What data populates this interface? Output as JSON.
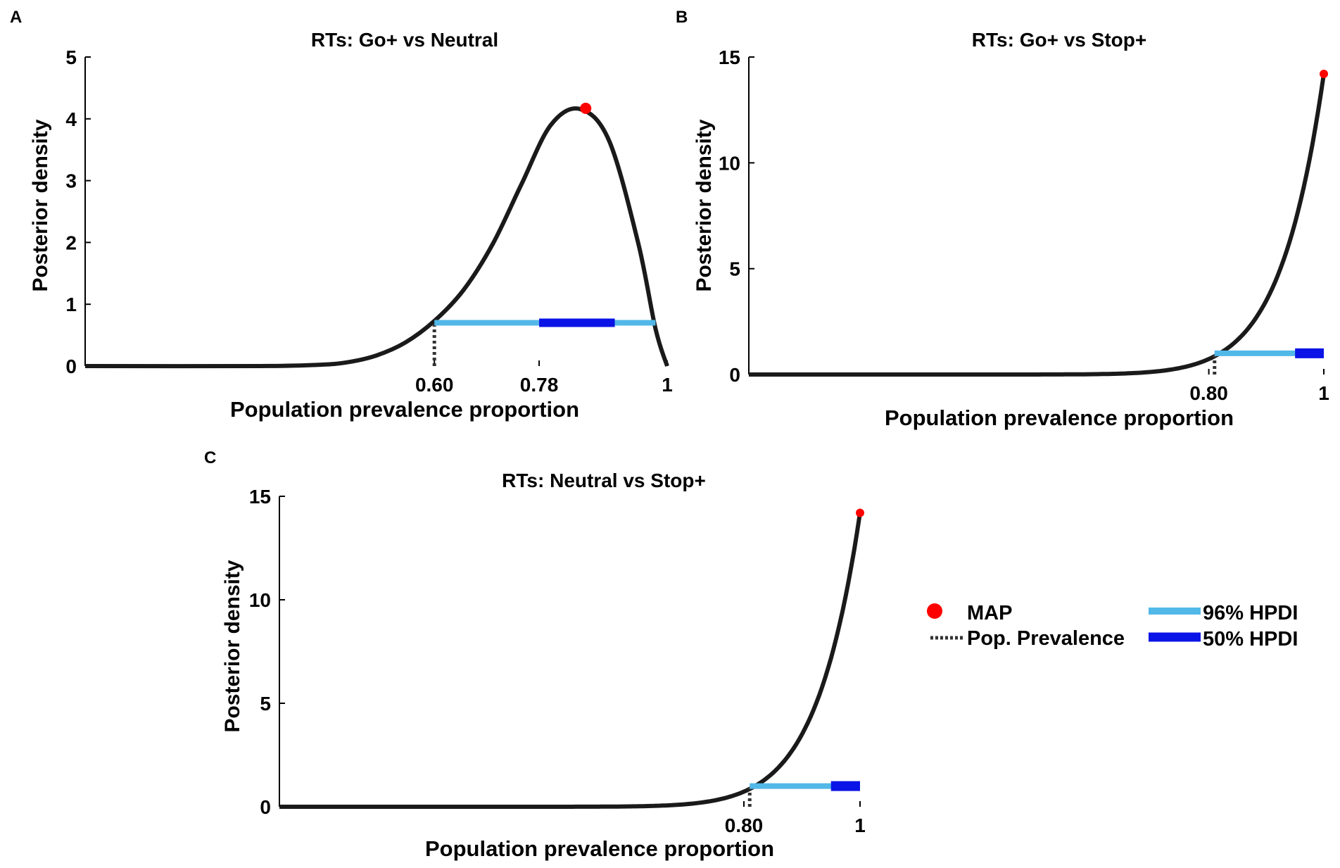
{
  "chart_data": [
    {
      "panel_label": "A",
      "type": "line",
      "title": "RTs: Go+ vs Neutral",
      "xlabel": "Population prevalence proportion",
      "ylabel": "Posterior density",
      "xlim": [
        0,
        1
      ],
      "ylim": [
        0,
        5
      ],
      "xticks": [
        0.6,
        0.78,
        1
      ],
      "xtick_labels": [
        "0.60",
        "0.78",
        "1"
      ],
      "yticks": [
        0,
        1,
        2,
        3,
        4,
        5
      ],
      "ytick_labels": [
        "0",
        "1",
        "2",
        "3",
        "4",
        "5"
      ],
      "curve": {
        "x": [
          0,
          0.3,
          0.4,
          0.45,
          0.5,
          0.55,
          0.6,
          0.65,
          0.7,
          0.75,
          0.8,
          0.85,
          0.9,
          0.95,
          0.98,
          1.0
        ],
        "y": [
          0,
          0.0,
          0.02,
          0.06,
          0.17,
          0.38,
          0.73,
          1.23,
          1.97,
          2.95,
          3.9,
          4.16,
          3.65,
          2.0,
          0.6,
          0.0
        ]
      },
      "map": {
        "x": 0.86,
        "y": 4.17
      },
      "hpdi_96": [
        0.6,
        0.98
      ],
      "hpdi_50": [
        0.78,
        0.91
      ],
      "hpdi_y": 0.7,
      "pop_prevalence": 0.6
    },
    {
      "panel_label": "B",
      "type": "line",
      "title": "RTs: Go+ vs Stop+",
      "xlabel": "Population prevalence proportion",
      "ylabel": "Posterior density",
      "xlim": [
        0,
        1
      ],
      "ylim": [
        0,
        15
      ],
      "xticks": [
        0.8,
        1
      ],
      "xtick_labels": [
        "0.80",
        "1"
      ],
      "yticks": [
        0,
        5,
        10,
        15
      ],
      "ytick_labels": [
        "0",
        "5",
        "10",
        "15"
      ],
      "curve_k": 14.2,
      "curve_n": 13.3,
      "map": {
        "x": 1.0,
        "y": 14.2
      },
      "hpdi_96": [
        0.81,
        1.0
      ],
      "hpdi_50": [
        0.95,
        1.0
      ],
      "hpdi_y": 1.0,
      "pop_prevalence": 0.81
    },
    {
      "panel_label": "C",
      "type": "line",
      "title": "RTs: Neutral vs Stop+",
      "xlabel": "Population prevalence proportion",
      "ylabel": "Posterior density",
      "xlim": [
        0,
        1
      ],
      "ylim": [
        0,
        15
      ],
      "xticks": [
        0.8,
        1
      ],
      "xtick_labels": [
        "0.80",
        "1"
      ],
      "yticks": [
        0,
        5,
        10,
        15
      ],
      "ytick_labels": [
        "0",
        "5",
        "10",
        "15"
      ],
      "curve_k": 14.2,
      "curve_n": 13.3,
      "map": {
        "x": 1.0,
        "y": 14.2
      },
      "hpdi_96": [
        0.81,
        1.0
      ],
      "hpdi_50": [
        0.95,
        1.0
      ],
      "hpdi_y": 1.0,
      "pop_prevalence": 0.81
    }
  ],
  "legend": {
    "map": "MAP",
    "pop_prevalence": "Pop. Prevalence",
    "hpdi_96": "96% HPDI",
    "hpdi_50": "50% HPDI"
  },
  "colors": {
    "curve": "#1a1a1a",
    "map": "#ff0000",
    "hpdi_96": "#52b8e8",
    "hpdi_50": "#0a14e6",
    "prevalence": "#333333"
  }
}
